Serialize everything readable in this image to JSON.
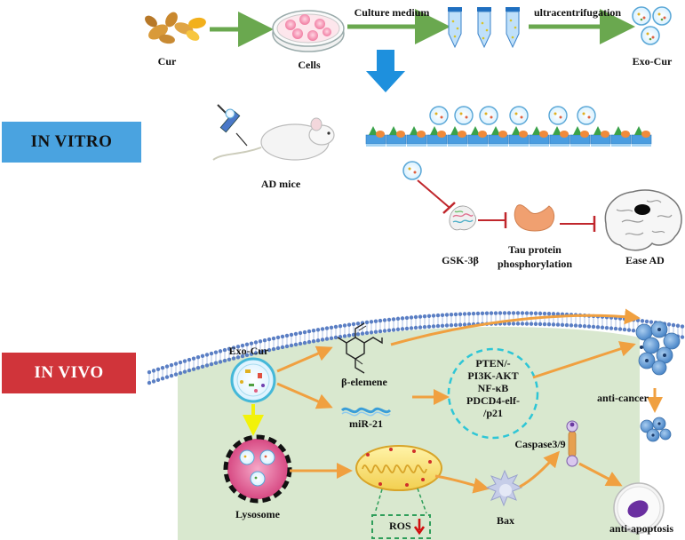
{
  "colors": {
    "in_vitro_box": "#4aa3e0",
    "in_vivo_box": "#d0343a",
    "cytoplasm": "#d9e8cf",
    "membrane": "#5b7fc4",
    "arrow_green": "#6aa84f",
    "arrow_orange": "#f0a040",
    "arrow_yellow": "#f2f20a",
    "arrow_blue": "#1e90dd",
    "inhibit_red": "#c0262c",
    "dashed_cyan": "#2ec6d6",
    "dashed_green": "#2f9e5a"
  },
  "panels": {
    "in_vitro": "IN VITRO",
    "in_vivo": "IN VIVO"
  },
  "top_flow": {
    "cur": "Cur",
    "cells": "Cells",
    "culture_medium": "Culture medium",
    "ultracentrifugation": "ultracentrifugation",
    "exo_cur": "Exo-Cur"
  },
  "in_vitro": {
    "ad_mice": "AD mice",
    "gsk": "GSK-3β",
    "tau_line1": "Tau protein",
    "tau_line2": "phosphorylation",
    "ease_ad": "Ease AD"
  },
  "in_vivo": {
    "exo_cur": "Exo-Cur",
    "beta_elemene": "β-elemene",
    "mir21": "miR-21",
    "pathway": [
      "PTEN/-",
      "PI3K-AKT",
      "NF-κB",
      "PDCD4-elf-",
      "/p21"
    ],
    "anti_cancer": "anti-cancer",
    "caspase": "Caspase3/9",
    "lysosome": "Lysosome",
    "bax": "Bax",
    "ros": "ROS",
    "anti_apoptosis": "anti-apoptosis"
  }
}
